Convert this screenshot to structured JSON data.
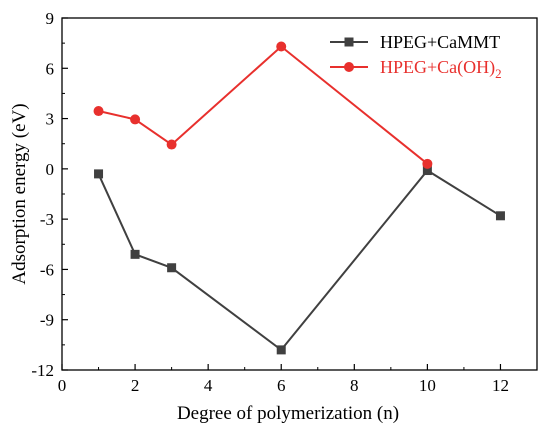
{
  "chart_data": {
    "type": "line",
    "xlabel": "Degree of polymerization (n)",
    "ylabel": "Adsorption energy (eV)",
    "xlim": [
      0,
      13
    ],
    "ylim": [
      -12,
      9
    ],
    "xticks": [
      0,
      2,
      4,
      6,
      8,
      10,
      12
    ],
    "yticks": [
      9,
      6,
      3,
      0,
      -3,
      -6,
      -9,
      -12
    ],
    "xtick_labels": [
      "0",
      "2",
      "4",
      "6",
      "8",
      "10",
      "12"
    ],
    "ytick_labels": [
      "9",
      "6",
      "3",
      "0",
      "-3",
      "-6",
      "-9",
      "-12"
    ],
    "legend_position": "top-right",
    "grid": false,
    "series": [
      {
        "name": "HPEG+CaMMT",
        "name_main": "HPEG+CaMMT",
        "name_sub": "",
        "color": "#404040",
        "marker": "square",
        "x": [
          1,
          2,
          3,
          6,
          10,
          12
        ],
        "y": [
          -0.3,
          -5.1,
          -5.9,
          -10.8,
          -0.1,
          -2.8
        ]
      },
      {
        "name": "HPEG+Ca(OH)2",
        "name_main": "HPEG+Ca(OH)",
        "name_sub": "2",
        "color": "#e8302d",
        "marker": "circle",
        "x": [
          1,
          2,
          3,
          6,
          10
        ],
        "y": [
          3.45,
          2.95,
          1.45,
          7.3,
          0.3
        ]
      }
    ]
  }
}
